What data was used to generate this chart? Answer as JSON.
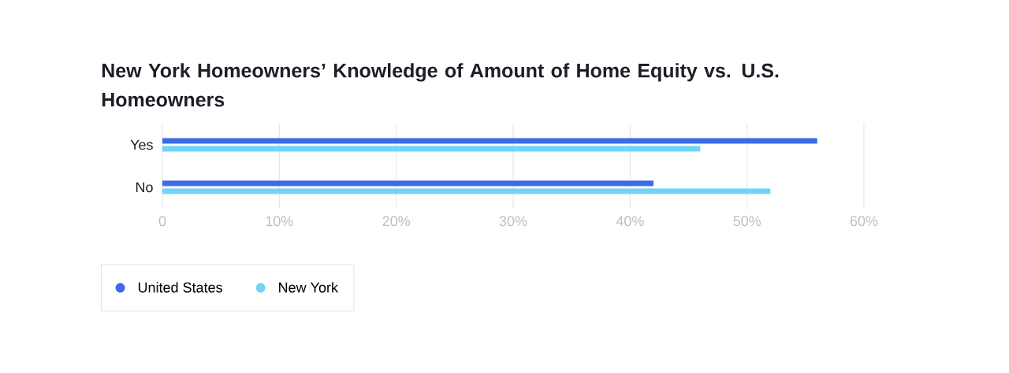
{
  "chart_data": {
    "type": "bar",
    "orientation": "horizontal",
    "title": "New York Homeowners’ Knowledge of Amount of Home Equity vs. U.S. Homeowners",
    "categories": [
      "Yes",
      "No"
    ],
    "series": [
      {
        "name": "United States",
        "color": "#3d6ae8",
        "values": [
          56,
          42
        ]
      },
      {
        "name": "New York",
        "color": "#6fd4f7",
        "values": [
          46,
          52
        ]
      }
    ],
    "xlim": [
      0,
      60
    ],
    "xticks": [
      {
        "value": 0,
        "label": "0"
      },
      {
        "value": 10,
        "label": "10%"
      },
      {
        "value": 20,
        "label": "20%"
      },
      {
        "value": 30,
        "label": "30%"
      },
      {
        "value": 40,
        "label": "40%"
      },
      {
        "value": 50,
        "label": "50%"
      },
      {
        "value": 60,
        "label": "60%"
      }
    ],
    "grid": "x",
    "legend": "bottom left"
  }
}
